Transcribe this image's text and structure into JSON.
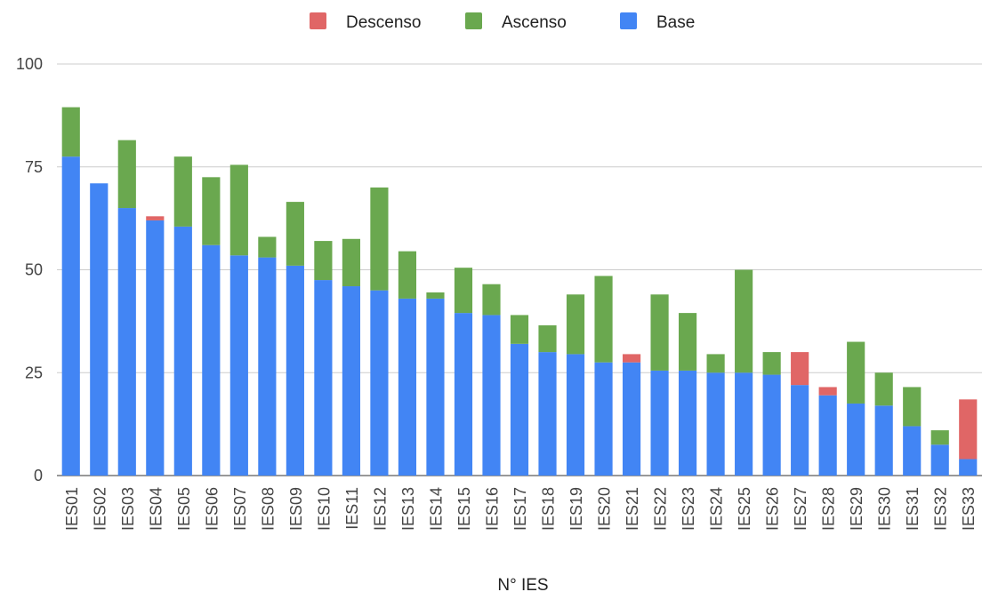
{
  "chart_data": {
    "type": "bar",
    "stacked": true,
    "xlabel": "N° IES",
    "ylabel": "",
    "ylim": [
      0,
      100
    ],
    "yticks": [
      0,
      25,
      50,
      75,
      100
    ],
    "grid": true,
    "legend_position": "top",
    "categories": [
      "IES01",
      "IES02",
      "IES03",
      "IES04",
      "IES05",
      "IES06",
      "IES07",
      "IES08",
      "IES09",
      "IES10",
      "IES11",
      "IES12",
      "IES13",
      "IES14",
      "IES15",
      "IES16",
      "IES17",
      "IES18",
      "IES19",
      "IES20",
      "IES21",
      "IES22",
      "IES23",
      "IES24",
      "IES25",
      "IES26",
      "IES27",
      "IES28",
      "IES29",
      "IES30",
      "IES31",
      "IES32",
      "IES33"
    ],
    "series": [
      {
        "name": "Base",
        "color": "#4285f4",
        "values": [
          77.5,
          71,
          65,
          62,
          60.5,
          56,
          53.5,
          53,
          51,
          47.5,
          46,
          45,
          43,
          43,
          39.5,
          39,
          32,
          30,
          29.5,
          27.5,
          27.5,
          25.5,
          25.5,
          25,
          25,
          24.5,
          22,
          19.5,
          17.5,
          17,
          12,
          7.5,
          4
        ]
      },
      {
        "name": "Ascenso",
        "color": "#6aa84f",
        "values": [
          12,
          0,
          16.5,
          0,
          17,
          16.5,
          22,
          5,
          15.5,
          9.5,
          11.5,
          25,
          11.5,
          1.5,
          11,
          7.5,
          7,
          6.5,
          14.5,
          21,
          0,
          18.5,
          14,
          4.5,
          25,
          5.5,
          0,
          0,
          15,
          8,
          9.5,
          3.5,
          0
        ]
      },
      {
        "name": "Descenso",
        "color": "#e06666",
        "values": [
          0,
          0,
          0,
          1,
          0,
          0,
          0,
          0,
          0,
          0,
          0,
          0,
          0,
          0,
          0,
          0,
          0,
          0,
          0,
          0,
          2,
          0,
          0,
          0,
          0,
          0,
          8,
          2,
          0,
          0,
          0,
          0,
          14.5
        ]
      }
    ],
    "legend": [
      "Descenso",
      "Ascenso",
      "Base"
    ]
  }
}
